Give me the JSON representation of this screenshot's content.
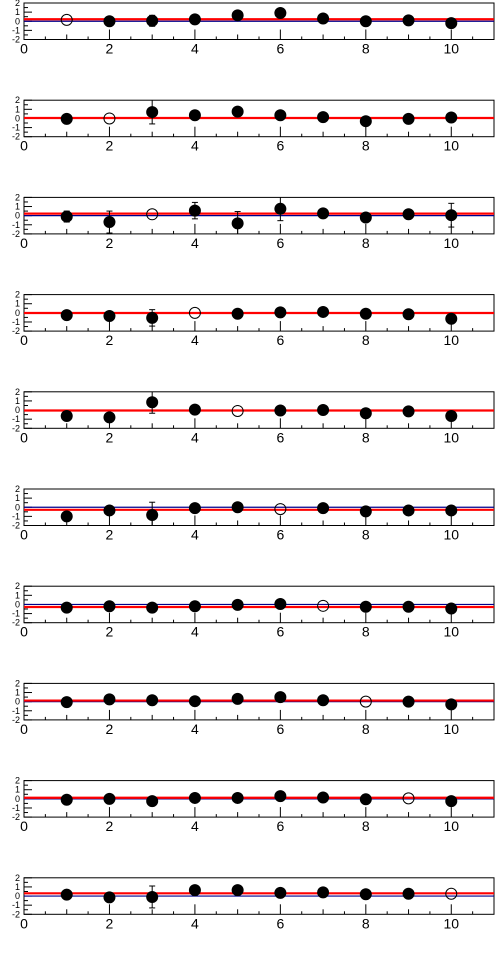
{
  "chart_data": [
    {
      "type": "scatter",
      "xlim": [
        0,
        11
      ],
      "ylim": [
        -2,
        2
      ],
      "x_ticklabels": [
        "0",
        "2",
        "4",
        "6",
        "8",
        "10"
      ],
      "y_ticklabels": [
        "-2",
        "-1",
        "0",
        "1",
        "2"
      ],
      "x": [
        1,
        2,
        3,
        4,
        5,
        6,
        7,
        8,
        9,
        10
      ],
      "y": [
        0.15,
        0.0,
        0.05,
        0.2,
        0.65,
        0.9,
        0.3,
        0.0,
        0.1,
        -0.2
      ],
      "err": [
        0.1,
        0.1,
        0.6,
        0.1,
        0.1,
        0.1,
        0.1,
        0.1,
        0.1,
        0.1
      ],
      "open_point_index": 0,
      "fit_value": 0.22,
      "reference_value": 0
    },
    {
      "type": "scatter",
      "xlim": [
        0,
        11
      ],
      "ylim": [
        -2,
        2
      ],
      "x_ticklabels": [
        "0",
        "2",
        "4",
        "6",
        "8",
        "10"
      ],
      "y_ticklabels": [
        "-2",
        "-1",
        "0",
        "1",
        "2"
      ],
      "x": [
        1,
        2,
        3,
        4,
        5,
        6,
        7,
        8,
        9,
        10
      ],
      "y": [
        -0.05,
        0.0,
        0.7,
        0.35,
        0.75,
        0.35,
        0.15,
        -0.3,
        -0.05,
        0.1
      ],
      "err": [
        0.1,
        0.1,
        1.3,
        0.1,
        0.1,
        0.1,
        0.1,
        0.1,
        0.1,
        0.1
      ],
      "open_point_index": 1,
      "fit_value": 0.05,
      "reference_value": 0
    },
    {
      "type": "scatter",
      "xlim": [
        0,
        11
      ],
      "ylim": [
        -2,
        2
      ],
      "x_ticklabels": [
        "0",
        "2",
        "4",
        "6",
        "8",
        "10"
      ],
      "y_ticklabels": [
        "-2",
        "-1",
        "0",
        "1",
        "2"
      ],
      "x": [
        1,
        2,
        3,
        4,
        5,
        6,
        7,
        8,
        9,
        10
      ],
      "y": [
        -0.1,
        -0.7,
        0.15,
        0.55,
        -0.85,
        0.75,
        0.25,
        -0.2,
        0.15,
        0.05
      ],
      "err": [
        0.6,
        1.2,
        0.1,
        0.9,
        1.3,
        1.3,
        0.1,
        0.4,
        0.1,
        1.3
      ],
      "open_point_index": 2,
      "fit_value": 0.22,
      "reference_value": 0
    },
    {
      "type": "scatter",
      "xlim": [
        0,
        11
      ],
      "ylim": [
        -2,
        2
      ],
      "x_ticklabels": [
        "0",
        "2",
        "4",
        "6",
        "8",
        "10"
      ],
      "y_ticklabels": [
        "-2",
        "-1",
        "0",
        "1",
        "2"
      ],
      "x": [
        1,
        2,
        3,
        4,
        5,
        6,
        7,
        8,
        9,
        10
      ],
      "y": [
        -0.25,
        -0.35,
        -0.55,
        0.0,
        -0.1,
        0.05,
        0.1,
        -0.1,
        -0.15,
        -0.65
      ],
      "err": [
        0.1,
        0.1,
        0.9,
        0.1,
        0.1,
        0.1,
        0.1,
        0.1,
        0.1,
        0.1
      ],
      "open_point_index": 3,
      "fit_value": -0.02,
      "reference_value": 0
    },
    {
      "type": "scatter",
      "xlim": [
        0,
        11
      ],
      "ylim": [
        -2,
        2
      ],
      "x_ticklabels": [
        "0",
        "2",
        "4",
        "6",
        "8",
        "10"
      ],
      "y_ticklabels": [
        "-2",
        "-1",
        "0",
        "1",
        "2"
      ],
      "x": [
        1,
        2,
        3,
        4,
        5,
        6,
        7,
        8,
        9,
        10
      ],
      "y": [
        -0.65,
        -0.8,
        0.85,
        0.05,
        -0.1,
        -0.05,
        0.0,
        -0.35,
        -0.15,
        -0.65
      ],
      "err": [
        0.1,
        0.1,
        1.2,
        0.1,
        0.1,
        0.1,
        0.1,
        0.1,
        0.1,
        0.1
      ],
      "open_point_index": 4,
      "fit_value": -0.05,
      "reference_value": 0
    },
    {
      "type": "scatter",
      "xlim": [
        0,
        11
      ],
      "ylim": [
        -2,
        2
      ],
      "x_ticklabels": [
        "0",
        "2",
        "4",
        "6",
        "8",
        "10"
      ],
      "y_ticklabels": [
        "-2",
        "-1",
        "0",
        "1",
        "2"
      ],
      "x": [
        1,
        2,
        3,
        4,
        5,
        6,
        7,
        8,
        9,
        10
      ],
      "y": [
        -1.0,
        -0.35,
        -0.85,
        -0.1,
        0.0,
        -0.2,
        -0.1,
        -0.45,
        -0.35,
        -0.35
      ],
      "err": [
        0.1,
        0.1,
        1.4,
        0.1,
        0.1,
        0.1,
        0.1,
        0.1,
        0.1,
        0.1
      ],
      "open_point_index": 5,
      "fit_value": -0.28,
      "reference_value": 0
    },
    {
      "type": "scatter",
      "xlim": [
        0,
        11
      ],
      "ylim": [
        -2,
        2
      ],
      "x_ticklabels": [
        "0",
        "2",
        "4",
        "6",
        "8",
        "10"
      ],
      "y_ticklabels": [
        "-2",
        "-1",
        "0",
        "1",
        "2"
      ],
      "x": [
        1,
        2,
        3,
        4,
        5,
        6,
        7,
        8,
        9,
        10
      ],
      "y": [
        -0.35,
        -0.2,
        -0.35,
        -0.2,
        -0.05,
        0.05,
        -0.15,
        -0.25,
        -0.25,
        -0.45
      ],
      "err": [
        0.1,
        0.1,
        0.1,
        0.1,
        0.1,
        0.1,
        0.1,
        0.1,
        0.1,
        0.1
      ],
      "open_point_index": 6,
      "fit_value": -0.28,
      "reference_value": 0
    },
    {
      "type": "scatter",
      "xlim": [
        0,
        11
      ],
      "ylim": [
        -2,
        2
      ],
      "x_ticklabels": [
        "0",
        "2",
        "4",
        "6",
        "8",
        "10"
      ],
      "y_ticklabels": [
        "-2",
        "-1",
        "0",
        "1",
        "2"
      ],
      "x": [
        1,
        2,
        3,
        4,
        5,
        6,
        7,
        8,
        9,
        10
      ],
      "y": [
        -0.05,
        0.25,
        0.15,
        0.05,
        0.3,
        0.5,
        0.15,
        0.0,
        0.0,
        -0.3
      ],
      "err": [
        0.1,
        0.1,
        0.4,
        0.1,
        0.1,
        0.1,
        0.1,
        0.1,
        0.1,
        0.1
      ],
      "open_point_index": 7,
      "fit_value": 0.12,
      "reference_value": 0
    },
    {
      "type": "scatter",
      "xlim": [
        0,
        11
      ],
      "ylim": [
        -2,
        2
      ],
      "x_ticklabels": [
        "0",
        "2",
        "4",
        "6",
        "8",
        "10"
      ],
      "y_ticklabels": [
        "-2",
        "-1",
        "0",
        "1",
        "2"
      ],
      "x": [
        1,
        2,
        3,
        4,
        5,
        6,
        7,
        8,
        9,
        10
      ],
      "y": [
        -0.1,
        0.0,
        -0.25,
        0.1,
        0.1,
        0.3,
        0.15,
        -0.05,
        0.05,
        -0.25
      ],
      "err": [
        0.1,
        0.1,
        0.1,
        0.1,
        0.1,
        0.1,
        0.1,
        0.1,
        0.1,
        0.1
      ],
      "open_point_index": 8,
      "fit_value": 0.12,
      "reference_value": 0
    },
    {
      "type": "scatter",
      "xlim": [
        0,
        11
      ],
      "ylim": [
        -2,
        2
      ],
      "x_ticklabels": [
        "0",
        "2",
        "4",
        "6",
        "8",
        "10"
      ],
      "y_ticklabels": [
        "-2",
        "-1",
        "0",
        "1",
        "2"
      ],
      "x": [
        1,
        2,
        3,
        4,
        5,
        6,
        7,
        8,
        9,
        10
      ],
      "y": [
        0.15,
        -0.15,
        -0.1,
        0.65,
        0.65,
        0.35,
        0.4,
        0.2,
        0.25,
        0.25
      ],
      "err": [
        0.1,
        0.1,
        1.2,
        0.1,
        0.1,
        0.1,
        0.1,
        0.1,
        0.1,
        0.1
      ],
      "open_point_index": 9,
      "fit_value": 0.3,
      "reference_value": 0
    }
  ],
  "colors": {
    "fit_line": "#ff0000",
    "reference_line": "#00008b",
    "marker": "#000000",
    "frame": "#000000"
  }
}
